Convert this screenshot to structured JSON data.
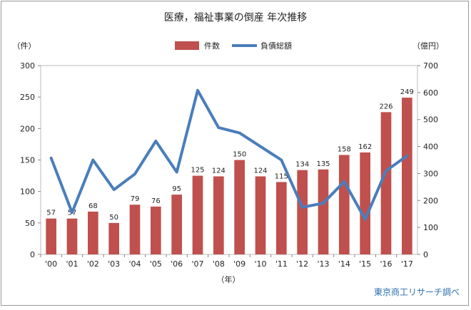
{
  "chart_data": {
    "type": "bar+line",
    "title": "医療，福祉事業の倒産 年次推移",
    "y_left_unit": "（件）",
    "y_right_unit": "（億円）",
    "x_unit": "（年）",
    "source": "東京商工リサーチ調べ",
    "categories": [
      "'00",
      "'01",
      "'02",
      "'03",
      "'04",
      "'05",
      "'06",
      "'07",
      "'08",
      "'09",
      "'10",
      "'11",
      "'12",
      "'13",
      "'14",
      "'15",
      "'16",
      "'17"
    ],
    "left_ticks": [
      "0",
      "50",
      "100",
      "150",
      "200",
      "250",
      "300"
    ],
    "right_ticks": [
      "0",
      "100",
      "200",
      "300",
      "400",
      "500",
      "600",
      "700"
    ],
    "ylim_left": [
      0,
      300
    ],
    "ylim_right": [
      0,
      700
    ],
    "series": [
      {
        "name": "件数",
        "type": "bar",
        "axis": "left",
        "color": "#c0504d",
        "values": [
          57,
          57,
          68,
          50,
          79,
          76,
          95,
          125,
          124,
          150,
          124,
          115,
          134,
          135,
          158,
          162,
          226,
          249
        ],
        "labels": [
          "57",
          "57",
          "68",
          "50",
          "79",
          "76",
          "95",
          "125",
          "124",
          "150",
          "124",
          "115",
          "134",
          "135",
          "158",
          "162",
          "226",
          "249"
        ]
      },
      {
        "name": "負債総額",
        "type": "line",
        "axis": "right",
        "color": "#4a7ebb",
        "values": [
          357,
          155,
          350,
          240,
          298,
          420,
          305,
          608,
          470,
          450,
          400,
          350,
          175,
          190,
          270,
          130,
          310,
          365
        ]
      }
    ],
    "legend_position": "top-center",
    "grid": false
  }
}
